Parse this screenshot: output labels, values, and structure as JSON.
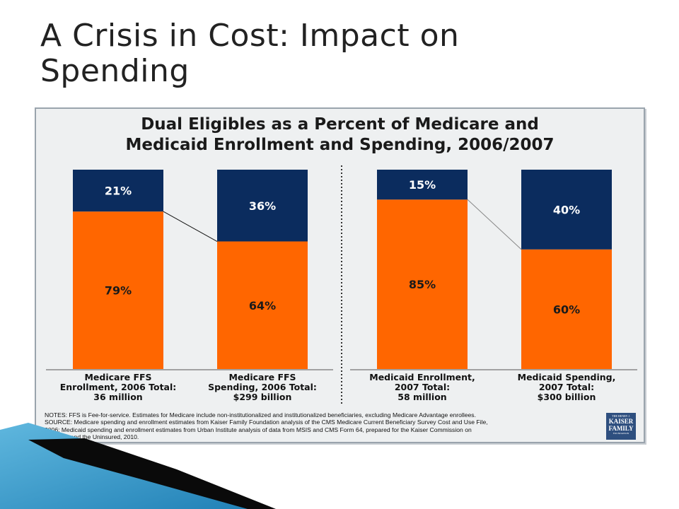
{
  "slide": {
    "title_line1": "A Crisis in Cost: Impact on",
    "title_line2": "Spending"
  },
  "chart_data": {
    "type": "bar",
    "stacked": true,
    "percent": true,
    "title_line1": "Dual Eligibles as a Percent of Medicare and",
    "title_line2": "Medicaid Enrollment and Spending, 2006/2007",
    "categories": [
      "Medicare FFS Enrollment, 2006 Total: 36 million",
      "Medicare FFS Spending, 2006 Total: $299 billion",
      "Medicaid Enrollment, 2007 Total: 58 million",
      "Medicaid Spending, 2007 Total: $300 billion"
    ],
    "category_label_lines": [
      [
        "Medicare FFS",
        "Enrollment, 2006 Total:",
        "36 million"
      ],
      [
        "Medicare FFS",
        "Spending, 2006 Total:",
        "$299 billion"
      ],
      [
        "Medicaid Enrollment,",
        "2007 Total:",
        "58 million"
      ],
      [
        "Medicaid Spending,",
        "2007 Total:",
        "$300 billion"
      ]
    ],
    "series": [
      {
        "values": [
          79,
          64,
          85,
          60
        ],
        "labels": [
          "79%",
          "64%",
          "85%",
          "60%"
        ],
        "color": "#ff6600"
      },
      {
        "values": [
          21,
          36,
          15,
          40
        ],
        "labels": [
          "21%",
          "36%",
          "15%",
          "40%"
        ],
        "color": "#0b2c5e"
      }
    ],
    "ylim": [
      0,
      100
    ],
    "groups": [
      [
        0,
        1
      ],
      [
        2,
        3
      ]
    ],
    "notes": [
      "NOTES: FFS is Fee-for-service. Estimates for Medicare include non-institutionalized and institutionalized beneficiaries, excluding Medicare Advantage enrollees.",
      "SOURCE: Medicare spending and enrollment estimates from Kaiser Family Foundation analysis of the CMS Medicare Current Beneficiary Survey Cost and Use File,",
      "2006; Medicaid spending and enrollment estimates from Urban Institute analysis of data from MSIS and CMS Form 64, prepared for the Kaiser Commission on",
      "Medicaid and the Uninsured, 2010."
    ]
  },
  "logo": {
    "line1": "THE HENRY J.",
    "line2": "KAISER",
    "line3": "FAMILY",
    "line4": "FOUNDATION"
  },
  "colors": {
    "orange": "#ff6600",
    "navy": "#0b2c5e",
    "frame_bg": "#eef0f1",
    "deco_blue": "#3a9fd0"
  }
}
